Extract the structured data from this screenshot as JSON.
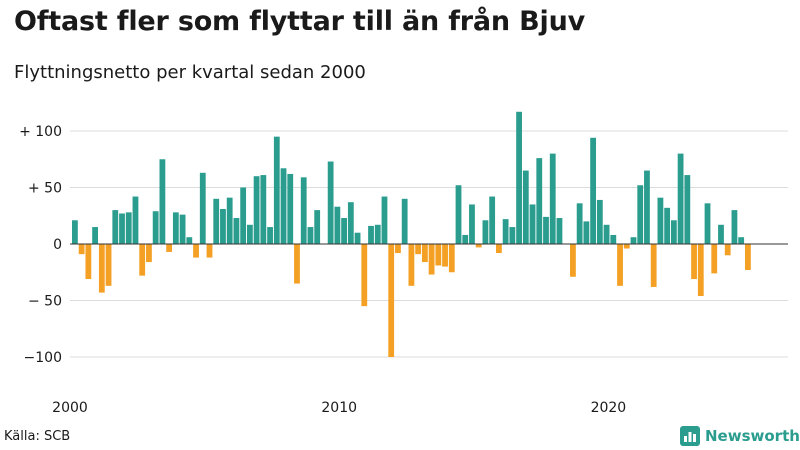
{
  "chart_data": {
    "type": "bar",
    "title": "Oftast fler som flyttar till än från Bjuv",
    "subtitle": "Flyttningsnetto per kvartal sedan 2000",
    "xlabel": "",
    "ylabel": "",
    "ylim": [
      -100,
      110
    ],
    "y_ticks": [
      {
        "value": 100,
        "label": "+ 100"
      },
      {
        "value": 50,
        "label": "+  50"
      },
      {
        "value": 0,
        "label": "0"
      },
      {
        "value": -50,
        "label": "− 50"
      },
      {
        "value": -100,
        "label": "−100"
      }
    ],
    "x_ticks": [
      {
        "value": 2000,
        "label": "2000"
      },
      {
        "value": 2010,
        "label": "2010"
      },
      {
        "value": 2020,
        "label": "2020"
      }
    ],
    "start_year": 2000,
    "quarters_per_year": 4,
    "positive_color": "#2a9d8f",
    "negative_color": "#f4a024",
    "grid": true,
    "values": [
      21,
      -9,
      -31,
      15,
      -43,
      -37,
      30,
      27,
      28,
      42,
      -28,
      -16,
      29,
      75,
      -7,
      28,
      26,
      6,
      -12,
      63,
      -12,
      40,
      31,
      41,
      23,
      50,
      17,
      60,
      61,
      15,
      95,
      67,
      62,
      -35,
      59,
      15,
      30,
      0,
      73,
      33,
      23,
      37,
      10,
      -55,
      16,
      17,
      42,
      -100,
      -8,
      40,
      -37,
      -9,
      -16,
      -27,
      -19,
      -20,
      -25,
      52,
      8,
      35,
      -3,
      21,
      42,
      -8,
      22,
      15,
      117,
      65,
      35,
      76,
      24,
      80,
      23,
      0,
      -29,
      36,
      20,
      94,
      39,
      17,
      8,
      -37,
      -4,
      6,
      52,
      65,
      -38,
      41,
      32,
      21,
      80,
      61,
      -31,
      -46,
      36,
      -26,
      17,
      -10,
      30,
      6,
      -23
    ]
  },
  "footer": {
    "source": "Källa: SCB",
    "brand": "Newsworthy"
  }
}
